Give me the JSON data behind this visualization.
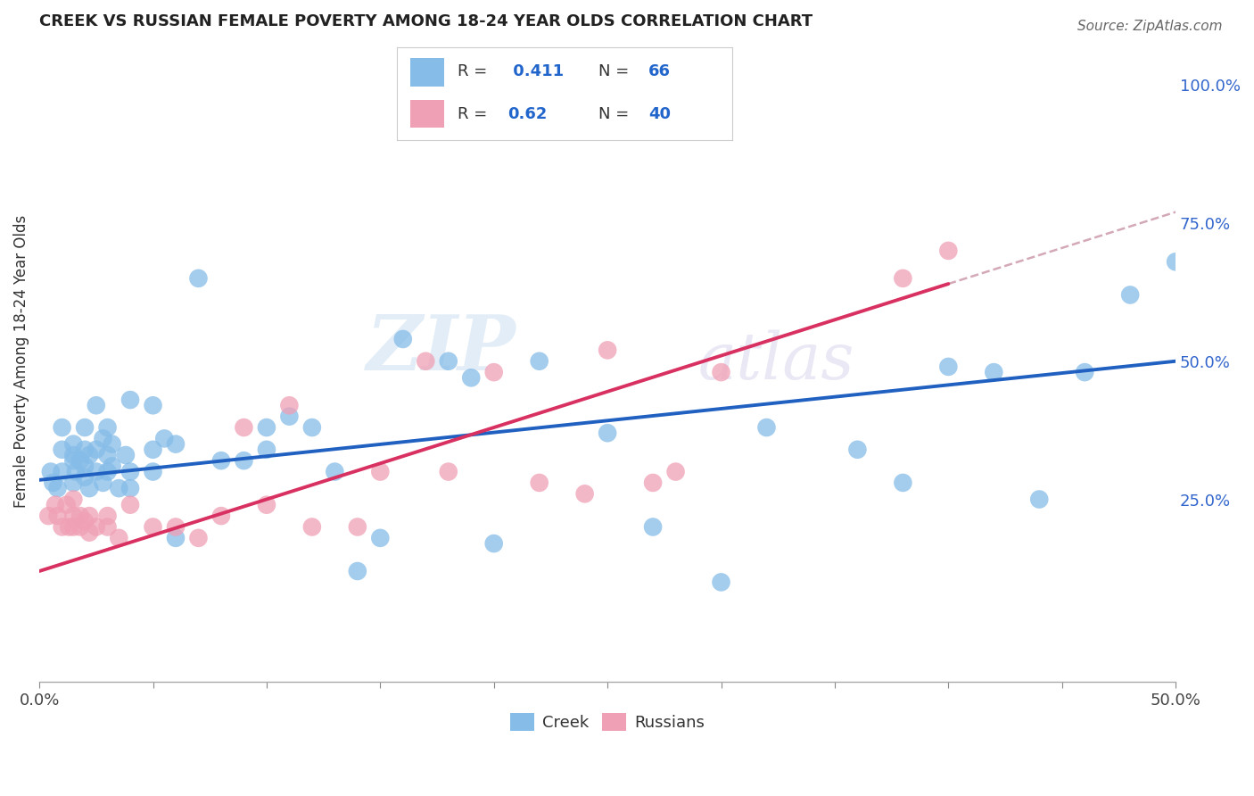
{
  "title": "CREEK VS RUSSIAN FEMALE POVERTY AMONG 18-24 YEAR OLDS CORRELATION CHART",
  "source": "Source: ZipAtlas.com",
  "ylabel": "Female Poverty Among 18-24 Year Olds",
  "xlim": [
    0.0,
    0.5
  ],
  "ylim": [
    -0.08,
    1.08
  ],
  "xticks": [
    0.0,
    0.05,
    0.1,
    0.15,
    0.2,
    0.25,
    0.3,
    0.35,
    0.4,
    0.45,
    0.5
  ],
  "yticks_right": [
    0.25,
    0.5,
    0.75,
    1.0
  ],
  "ytick_right_labels": [
    "25.0%",
    "50.0%",
    "75.0%",
    "100.0%"
  ],
  "creek_color": "#85bce8",
  "russian_color": "#f0a0b5",
  "creek_line_color": "#2060c0",
  "russian_line_color": "#d83060",
  "dashed_line_color": "#d0a0b0",
  "R_creek": 0.411,
  "N_creek": 66,
  "R_russian": 0.62,
  "N_russian": 40,
  "watermark_zip": "ZIP",
  "watermark_atlas": "atlas",
  "background_color": "#ffffff",
  "grid_color": "#c8c8d0",
  "creek_intercept": 0.285,
  "creek_slope": 0.43,
  "russian_intercept": 0.12,
  "russian_slope": 1.3,
  "creek_x": [
    0.005,
    0.006,
    0.008,
    0.01,
    0.01,
    0.01,
    0.015,
    0.015,
    0.015,
    0.015,
    0.016,
    0.018,
    0.02,
    0.02,
    0.02,
    0.02,
    0.022,
    0.022,
    0.025,
    0.025,
    0.025,
    0.028,
    0.028,
    0.03,
    0.03,
    0.03,
    0.032,
    0.032,
    0.035,
    0.038,
    0.04,
    0.04,
    0.04,
    0.05,
    0.05,
    0.05,
    0.055,
    0.06,
    0.06,
    0.07,
    0.08,
    0.09,
    0.1,
    0.1,
    0.11,
    0.12,
    0.13,
    0.14,
    0.15,
    0.16,
    0.18,
    0.19,
    0.2,
    0.22,
    0.25,
    0.27,
    0.3,
    0.32,
    0.36,
    0.38,
    0.4,
    0.42,
    0.44,
    0.46,
    0.48,
    0.5
  ],
  "creek_y": [
    0.3,
    0.28,
    0.27,
    0.3,
    0.34,
    0.38,
    0.28,
    0.32,
    0.33,
    0.35,
    0.3,
    0.32,
    0.29,
    0.31,
    0.34,
    0.38,
    0.27,
    0.33,
    0.3,
    0.34,
    0.42,
    0.28,
    0.36,
    0.3,
    0.33,
    0.38,
    0.31,
    0.35,
    0.27,
    0.33,
    0.27,
    0.3,
    0.43,
    0.3,
    0.34,
    0.42,
    0.36,
    0.18,
    0.35,
    0.65,
    0.32,
    0.32,
    0.34,
    0.38,
    0.4,
    0.38,
    0.3,
    0.12,
    0.18,
    0.54,
    0.5,
    0.47,
    0.17,
    0.5,
    0.37,
    0.2,
    0.1,
    0.38,
    0.34,
    0.28,
    0.49,
    0.48,
    0.25,
    0.48,
    0.62,
    0.68
  ],
  "russian_x": [
    0.004,
    0.007,
    0.008,
    0.01,
    0.012,
    0.013,
    0.015,
    0.015,
    0.015,
    0.018,
    0.018,
    0.02,
    0.022,
    0.022,
    0.025,
    0.03,
    0.03,
    0.035,
    0.04,
    0.05,
    0.06,
    0.07,
    0.08,
    0.09,
    0.1,
    0.11,
    0.12,
    0.14,
    0.15,
    0.17,
    0.18,
    0.2,
    0.22,
    0.24,
    0.25,
    0.27,
    0.28,
    0.3,
    0.38,
    0.4
  ],
  "russian_y": [
    0.22,
    0.24,
    0.22,
    0.2,
    0.24,
    0.2,
    0.2,
    0.22,
    0.25,
    0.2,
    0.22,
    0.21,
    0.19,
    0.22,
    0.2,
    0.2,
    0.22,
    0.18,
    0.24,
    0.2,
    0.2,
    0.18,
    0.22,
    0.38,
    0.24,
    0.42,
    0.2,
    0.2,
    0.3,
    0.5,
    0.3,
    0.48,
    0.28,
    0.26,
    0.52,
    0.28,
    0.3,
    0.48,
    0.65,
    0.7
  ]
}
